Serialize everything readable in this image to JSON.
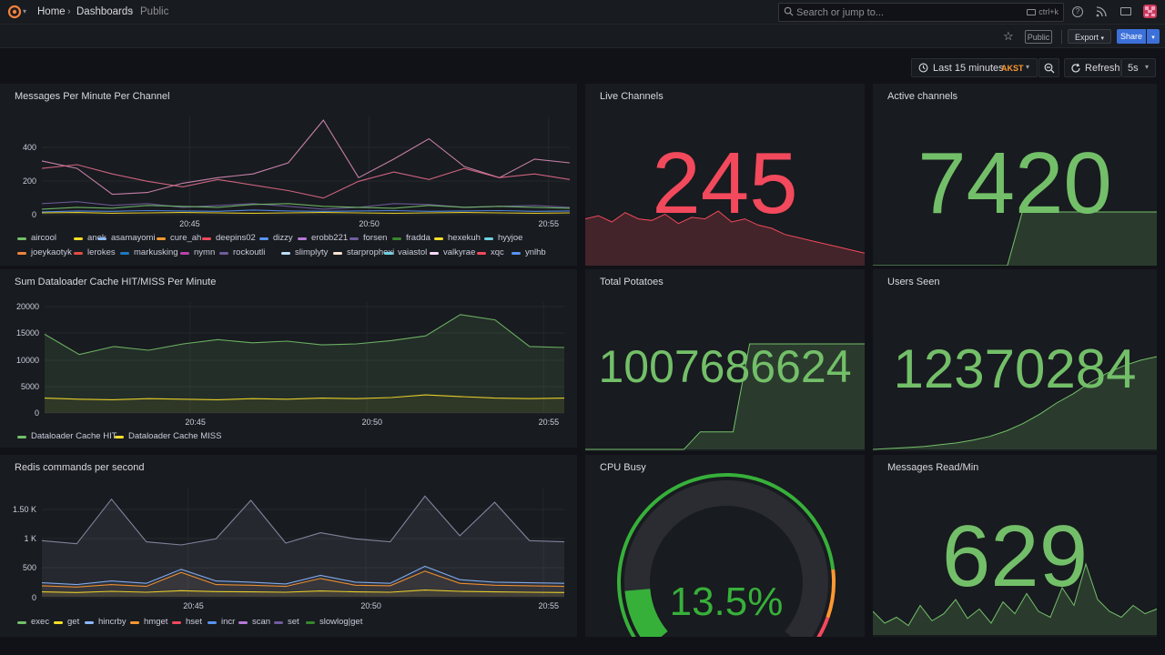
{
  "breadcrumb": {
    "home": "Home",
    "dashboards": "Dashboards",
    "current": "Public"
  },
  "search": {
    "placeholder": "Search or jump to...",
    "shortcut": "ctrl+k"
  },
  "subbar": {
    "public_badge": "Public",
    "export_label": "Export",
    "share_label": "Share"
  },
  "toolbar": {
    "time_range": "Last 15 minutes",
    "timezone": "AKST",
    "refresh_label": "Refresh",
    "refresh_interval": "5s"
  },
  "colors": {
    "green": "#73bf69",
    "red": "#f2495c",
    "yellow": "#fade2a",
    "orange": "#ff9830",
    "purple": "#b877d9",
    "blue": "#5794f2"
  },
  "icons": [
    "grafana-logo-icon",
    "chevron-down-icon",
    "search-icon",
    "keyboard-icon",
    "help-icon",
    "news-icon",
    "monitor-icon",
    "user-avatar-icon",
    "star-icon",
    "clock-icon",
    "zoom-out-icon",
    "refresh-icon"
  ],
  "panels": {
    "messages": {
      "title": "Messages Per Minute Per Channel",
      "y_ticks": [
        "400",
        "200",
        "0"
      ],
      "x_ticks": [
        "20:45",
        "20:50",
        "20:55"
      ],
      "legend": [
        {
          "name": "aircool",
          "color": "#73bf69"
        },
        {
          "name": "anek",
          "color": "#fade2a"
        },
        {
          "name": "asamayomi",
          "color": "#8ab8ff"
        },
        {
          "name": "cure_ah",
          "color": "#ff9830"
        },
        {
          "name": "deepins02",
          "color": "#f2495c"
        },
        {
          "name": "dizzy",
          "color": "#5794f2"
        },
        {
          "name": "erobb221",
          "color": "#b877d9"
        },
        {
          "name": "forsen",
          "color": "#705da0"
        },
        {
          "name": "fradda",
          "color": "#37872d"
        },
        {
          "name": "hexekuh",
          "color": "#fade2a"
        },
        {
          "name": "hyyjoe",
          "color": "#6ed0e0"
        },
        {
          "name": "joeykaotyk",
          "color": "#ef843c"
        },
        {
          "name": "lerokes",
          "color": "#e24d42"
        },
        {
          "name": "markusking",
          "color": "#1f78c1"
        },
        {
          "name": "nymn",
          "color": "#ba43a9"
        },
        {
          "name": "rockoutli",
          "color": "#705da0"
        },
        {
          "name": "slimplyty",
          "color": "#badff4"
        },
        {
          "name": "starprophexi",
          "color": "#f9e2d2"
        },
        {
          "name": "vaiastol",
          "color": "#6ed0e0"
        },
        {
          "name": "valkyrae",
          "color": "#f9d9f9"
        },
        {
          "name": "xqc",
          "color": "#f2495c"
        },
        {
          "name": "ynlhb",
          "color": "#5794f2"
        }
      ],
      "chart_data": {
        "type": "line",
        "x": [
          "20:41",
          "20:42",
          "20:43",
          "20:44",
          "20:45",
          "20:46",
          "20:47",
          "20:48",
          "20:49",
          "20:50",
          "20:51",
          "20:52",
          "20:53",
          "20:54",
          "20:55",
          "20:56"
        ],
        "ylim": [
          0,
          540
        ],
        "series": [
          {
            "name": "deepins02",
            "color": "#d88bb8",
            "values": [
              290,
              250,
              110,
              120,
              170,
              200,
              220,
              280,
              510,
              200,
              300,
              410,
              260,
              200,
              300,
              280
            ]
          },
          {
            "name": "xqc",
            "color": "#e06a8a",
            "values": [
              250,
              270,
              220,
              180,
              150,
              190,
              160,
              130,
              90,
              180,
              230,
              190,
              250,
              200,
              220,
              190
            ]
          },
          {
            "name": "forsen",
            "color": "#705da0",
            "values": [
              60,
              70,
              50,
              60,
              40,
              50,
              60,
              45,
              30,
              40,
              60,
              55,
              40,
              45,
              50,
              40
            ]
          },
          {
            "name": "fradda",
            "color": "#73bf69",
            "values": [
              30,
              40,
              35,
              50,
              45,
              40,
              55,
              60,
              45,
              40,
              35,
              50,
              40,
              45,
              40,
              35
            ]
          },
          {
            "name": "dizzy",
            "color": "#5794f2",
            "values": [
              15,
              20,
              18,
              22,
              20,
              18,
              25,
              20,
              18,
              20,
              22,
              18,
              20,
              22,
              18,
              20
            ]
          },
          {
            "name": "anek",
            "color": "#fade2a",
            "values": [
              10,
              12,
              8,
              10,
              12,
              10,
              8,
              10,
              12,
              10,
              8,
              10,
              12,
              10,
              8,
              10
            ]
          }
        ]
      }
    },
    "live_channels": {
      "title": "Live Channels",
      "value": "245",
      "chart_data": {
        "type": "area",
        "values": [
          30,
          32,
          28,
          34,
          30,
          29,
          33,
          27,
          31,
          30,
          35,
          28,
          30,
          26,
          24,
          20,
          18,
          16,
          14,
          12,
          10,
          8
        ]
      }
    },
    "active_channels": {
      "title": "Active channels",
      "value": "7420",
      "chart_data": {
        "type": "area",
        "values": [
          0,
          0,
          0,
          0,
          0,
          0,
          0,
          0,
          0,
          0,
          7420,
          7420,
          7420,
          7420,
          7420,
          7420,
          7420,
          7420,
          7420,
          7420
        ]
      }
    },
    "dataloader": {
      "title": "Sum Dataloader Cache HIT/MISS Per Minute",
      "y_ticks": [
        "20000",
        "15000",
        "10000",
        "5000",
        "0"
      ],
      "x_ticks": [
        "20:45",
        "20:50",
        "20:55"
      ],
      "legend": [
        {
          "name": "Dataloader Cache HIT",
          "color": "#73bf69"
        },
        {
          "name": "Dataloader Cache MISS",
          "color": "#fade2a"
        }
      ],
      "chart_data": {
        "type": "line",
        "x": [
          "20:41",
          "20:42",
          "20:43",
          "20:44",
          "20:45",
          "20:46",
          "20:47",
          "20:48",
          "20:49",
          "20:50",
          "20:51",
          "20:52",
          "20:53",
          "20:54",
          "20:55",
          "20:56"
        ],
        "ylim": [
          0,
          20000
        ],
        "series": [
          {
            "name": "Dataloader Cache HIT",
            "values": [
              14800,
              11000,
              12500,
              11800,
              13000,
              13800,
              13200,
              13500,
              12800,
              13000,
              13600,
              14500,
              18500,
              17500,
              12500,
              12300
            ]
          },
          {
            "name": "Dataloader Cache MISS",
            "values": [
              2800,
              2600,
              2500,
              2700,
              2600,
              2500,
              2700,
              2600,
              2800,
              2700,
              2900,
              3400,
              3100,
              2800,
              2700,
              2800
            ]
          }
        ]
      }
    },
    "total_potatoes": {
      "title": "Total Potatoes",
      "value": "1007686624",
      "chart_data": {
        "type": "area",
        "values": [
          0,
          0,
          0,
          0,
          0,
          0,
          0,
          1,
          1,
          1,
          6,
          6,
          6,
          6,
          6,
          6,
          6,
          6
        ]
      }
    },
    "users_seen": {
      "title": "Users Seen",
      "value": "12370284",
      "chart_data": {
        "type": "area",
        "values": [
          0,
          1,
          2,
          3,
          5,
          7,
          10,
          14,
          20,
          28,
          38,
          50,
          60,
          72,
          82,
          90,
          96,
          100
        ]
      }
    },
    "redis": {
      "title": "Redis commands per second",
      "y_ticks": [
        "1.50 K",
        "1 K",
        "500",
        "0"
      ],
      "x_ticks": [
        "20:45",
        "20:50",
        "20:55"
      ],
      "legend": [
        {
          "name": "exec",
          "color": "#73bf69"
        },
        {
          "name": "get",
          "color": "#fade2a"
        },
        {
          "name": "hincrby",
          "color": "#8ab8ff"
        },
        {
          "name": "hmget",
          "color": "#ff9830"
        },
        {
          "name": "hset",
          "color": "#f2495c"
        },
        {
          "name": "incr",
          "color": "#5794f2"
        },
        {
          "name": "scan",
          "color": "#b877d9"
        },
        {
          "name": "set",
          "color": "#705da0"
        },
        {
          "name": "slowlog|get",
          "color": "#37872d"
        }
      ],
      "chart_data": {
        "type": "line",
        "x": [
          "20:41",
          "20:42",
          "20:43",
          "20:44",
          "20:45",
          "20:46",
          "20:47",
          "20:48",
          "20:49",
          "20:50",
          "20:51",
          "20:52",
          "20:53",
          "20:54",
          "20:55",
          "20:56"
        ],
        "ylim": [
          0,
          1700
        ],
        "series": [
          {
            "name": "scan",
            "color": "#8a8fa8",
            "values": [
              920,
              870,
              1600,
              900,
              850,
              950,
              1580,
              880,
              1050,
              950,
              900,
              1650,
              1000,
              1550,
              920,
              900
            ]
          },
          {
            "name": "hincrby",
            "color": "#8ab8ff",
            "values": [
              230,
              200,
              260,
              220,
              450,
              260,
              240,
              210,
              350,
              240,
              220,
              500,
              280,
              240,
              230,
              220
            ]
          },
          {
            "name": "hmget",
            "color": "#ff9830",
            "values": [
              180,
              160,
              200,
              170,
              400,
              200,
              190,
              170,
              300,
              190,
              180,
              420,
              220,
              190,
              180,
              170
            ]
          },
          {
            "name": "get",
            "color": "#fade2a",
            "values": [
              80,
              70,
              90,
              75,
              100,
              85,
              80,
              75,
              95,
              80,
              75,
              110,
              90,
              80,
              75,
              70
            ]
          }
        ]
      }
    },
    "cpu_busy": {
      "title": "CPU Busy",
      "value": "13.5%",
      "chart_data": {
        "type": "gauge",
        "value": 13.5,
        "min": 0,
        "max": 100
      }
    },
    "messages_read": {
      "title": "Messages Read/Min",
      "value": "629",
      "chart_data": {
        "type": "area",
        "values": [
          20,
          10,
          15,
          8,
          25,
          12,
          18,
          30,
          14,
          22,
          10,
          28,
          18,
          35,
          20,
          15,
          40,
          25,
          60,
          30,
          20,
          15,
          25,
          18,
          22
        ]
      }
    }
  }
}
